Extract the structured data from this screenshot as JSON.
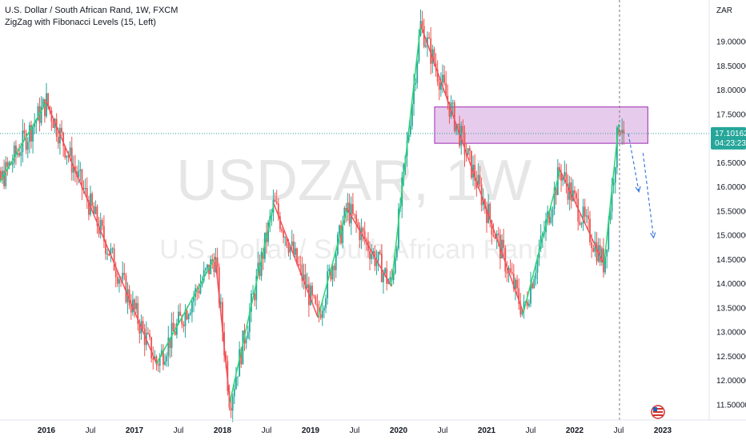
{
  "header": {
    "symbol_line": "U.S. Dollar / South African Rand, 1W, FXCM",
    "indicator_line": "ZigZag with Fibonacci Levels (15, Left)"
  },
  "watermark": {
    "ticker": "USDZAR, 1W",
    "name": "U.S. Dollar / South African Rand"
  },
  "currency_label": "ZAR",
  "last_price": {
    "value": "17.10162",
    "countdown": "04:23:23"
  },
  "colors": {
    "up": "#26a69a",
    "down": "#ef5350",
    "zigzag_up": "#2bd675",
    "zigzag_down": "#f0525c",
    "zone_fill": "#e1bee7",
    "zone_stroke": "#9c27b0",
    "arrow": "#3d7be0",
    "price_tag": "#26a69a"
  },
  "chart_data": {
    "type": "candlestick",
    "y_axis": {
      "min": 11.5,
      "max": 19.0,
      "scale": "linear",
      "tick_labels": [
        "19.00000",
        "18.50000",
        "18.00000",
        "17.50000",
        "17.00000",
        "16.50000",
        "16.00000",
        "15.50000",
        "15.00000",
        "14.50000",
        "14.00000",
        "13.50000",
        "13.00000",
        "12.50000",
        "12.00000",
        "11.50000"
      ],
      "position": "right"
    },
    "x_axis": {
      "tick_labels": [
        "2016",
        "Jul",
        "2017",
        "Jul",
        "2018",
        "Jul",
        "2019",
        "Jul",
        "2020",
        "Jul",
        "2021",
        "Jul",
        "2022",
        "Jul",
        "2023"
      ]
    },
    "zigzag": [
      {
        "date": "2015-04",
        "price": 15.4
      },
      {
        "date": "2016-01",
        "price": 17.75
      },
      {
        "date": "2017-04",
        "price": 12.35
      },
      {
        "date": "2017-12",
        "price": 14.55
      },
      {
        "date": "2018-02",
        "price": 11.55
      },
      {
        "date": "2018-08",
        "price": 15.65
      },
      {
        "date": "2019-02",
        "price": 13.3
      },
      {
        "date": "2019-06",
        "price": 15.55
      },
      {
        "date": "2019-12",
        "price": 13.95
      },
      {
        "date": "2020-04",
        "price": 19.35
      },
      {
        "date": "2021-06",
        "price": 13.4
      },
      {
        "date": "2021-11",
        "price": 16.35
      },
      {
        "date": "2022-05",
        "price": 14.4
      },
      {
        "date": "2022-07",
        "price": 17.3
      }
    ],
    "supply_zone": {
      "date_start": "2020-07",
      "date_end": "2022-09",
      "price_low": 16.9,
      "price_high": 17.65
    },
    "projection_arrows": [
      {
        "from_date": "2022-07",
        "from_price": 17.1,
        "to_date": "2022-08",
        "to_price": 15.9
      },
      {
        "from_date": "2022-09",
        "from_price": 16.7,
        "to_date": "2022-10",
        "to_price": 14.95
      }
    ],
    "last_price_line": 17.10162
  }
}
